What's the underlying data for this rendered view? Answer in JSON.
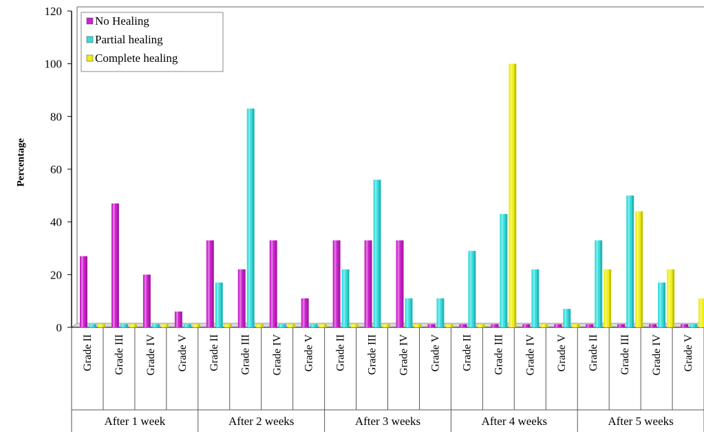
{
  "chart_data": {
    "type": "bar",
    "title": "",
    "xlabel": "",
    "ylabel": "Percentage",
    "ylim": [
      0,
      120
    ],
    "yticks": [
      0,
      20,
      40,
      60,
      80,
      100,
      120
    ],
    "grid": false,
    "legend_position": "top-left",
    "groups": [
      "After 1 week",
      "After 2 weeks",
      "After 3 weeks",
      "After 4 weeks",
      "After 5 weeks"
    ],
    "categories": [
      "Grade II",
      "Grade III",
      "Grade IV",
      "Grade V"
    ],
    "series": [
      {
        "name": "No Healing",
        "color": "#cc22cc",
        "values": [
          [
            27,
            47,
            20,
            6
          ],
          [
            33,
            22,
            33,
            11
          ],
          [
            33,
            33,
            33,
            0
          ],
          [
            0,
            0,
            0,
            0
          ],
          [
            0,
            0,
            0,
            0
          ]
        ]
      },
      {
        "name": "Partial healing",
        "color": "#33dddd",
        "values": [
          [
            0,
            0,
            0,
            0
          ],
          [
            17,
            83,
            0,
            0
          ],
          [
            22,
            56,
            11,
            11
          ],
          [
            29,
            43,
            22,
            7
          ],
          [
            33,
            50,
            17,
            0
          ]
        ]
      },
      {
        "name": "Complete healing",
        "color": "#eeee11",
        "values": [
          [
            0,
            0,
            0,
            0
          ],
          [
            0,
            0,
            0,
            0
          ],
          [
            0,
            0,
            0,
            0
          ],
          [
            0,
            100,
            0,
            0
          ],
          [
            22,
            44,
            22,
            11
          ]
        ]
      }
    ]
  }
}
